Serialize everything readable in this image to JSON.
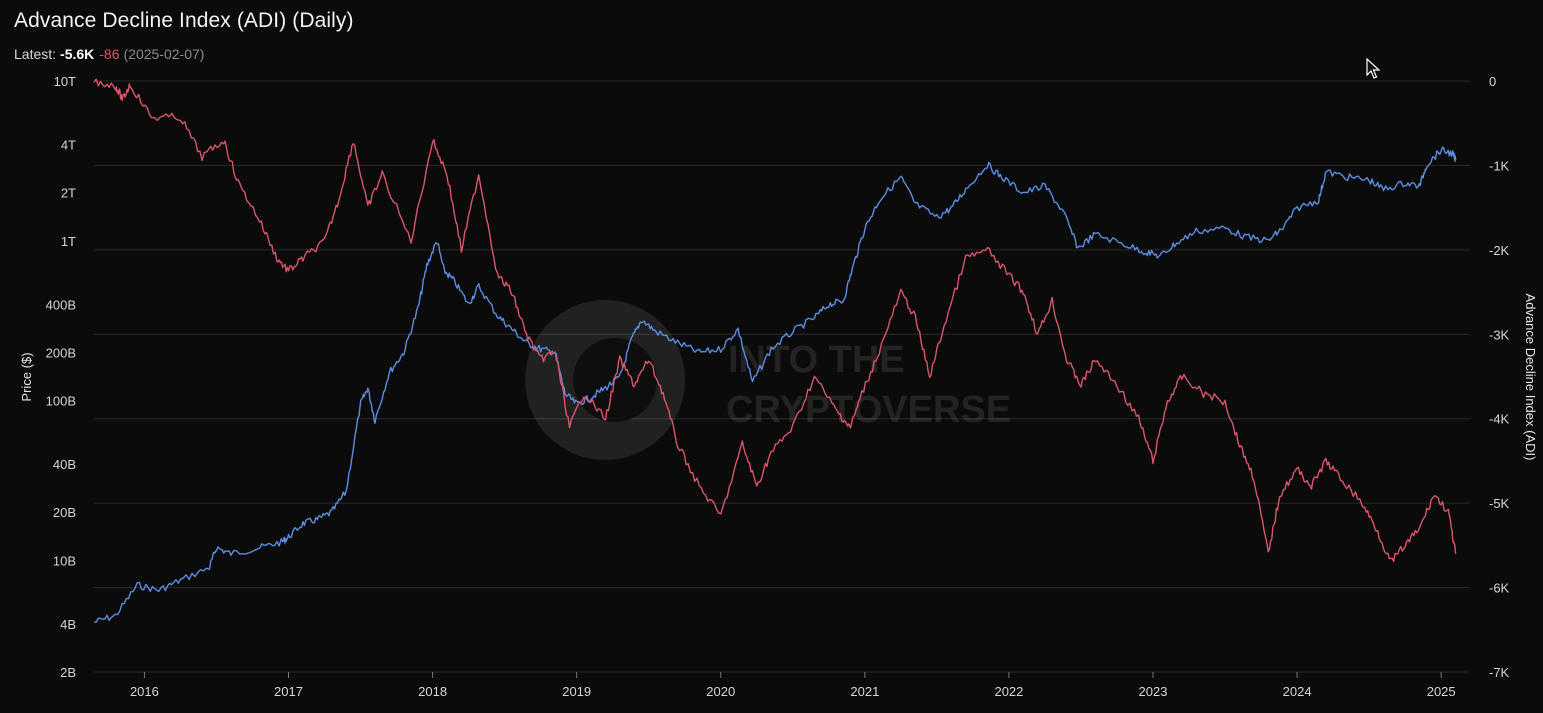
{
  "header": {
    "title": "Advance Decline Index (ADI) (Daily)",
    "latest_label": "Latest:",
    "latest_adi": "-5.6K",
    "latest_price": "-86",
    "latest_date": "(2025-02-07)"
  },
  "watermark": {
    "line1": "INTO THE",
    "line2": "CRYPTOVERSE"
  },
  "colors": {
    "background": "#0b0b0b",
    "price": "#5b8ee0",
    "adi": "#d9566a",
    "grid": "#2a2a2a"
  },
  "chart_data": {
    "type": "line",
    "title": "Advance Decline Index (ADI) (Daily)",
    "xlabel": "",
    "x_ticks": [
      "2016",
      "2017",
      "2018",
      "2019",
      "2020",
      "2021",
      "2022",
      "2023",
      "2024",
      "2025"
    ],
    "x_range": [
      2015.65,
      2025.2
    ],
    "y_left": {
      "label": "Price ($)",
      "scale": "log",
      "ticks": [
        {
          "label": "10T",
          "value": 10000000000000
        },
        {
          "label": "4T",
          "value": 4000000000000
        },
        {
          "label": "2T",
          "value": 2000000000000
        },
        {
          "label": "1T",
          "value": 1000000000000
        },
        {
          "label": "400B",
          "value": 400000000000
        },
        {
          "label": "200B",
          "value": 200000000000
        },
        {
          "label": "100B",
          "value": 100000000000
        },
        {
          "label": "40B",
          "value": 40000000000
        },
        {
          "label": "20B",
          "value": 20000000000
        },
        {
          "label": "10B",
          "value": 10000000000
        },
        {
          "label": "4B",
          "value": 4000000000
        },
        {
          "label": "2B",
          "value": 2000000000
        }
      ]
    },
    "y_right": {
      "label": "Advance Decline Index (ADI)",
      "ticks": [
        {
          "label": "0",
          "value": 0
        },
        {
          "label": "-1K",
          "value": -1000
        },
        {
          "label": "-2K",
          "value": -2000
        },
        {
          "label": "-3K",
          "value": -3000
        },
        {
          "label": "-4K",
          "value": -4000
        },
        {
          "label": "-5K",
          "value": -5000
        },
        {
          "label": "-6K",
          "value": -6000
        },
        {
          "label": "-7K",
          "value": -7000
        }
      ],
      "ylim": [
        -7000,
        0
      ]
    },
    "series": [
      {
        "axis": "left",
        "points": [
          [
            2015.65,
            4100000000.0
          ],
          [
            2015.8,
            4500000000.0
          ],
          [
            2015.95,
            7000000000.0
          ],
          [
            2016.1,
            6500000000.0
          ],
          [
            2016.25,
            7500000000.0
          ],
          [
            2016.45,
            9000000000.0
          ],
          [
            2016.5,
            12000000000.0
          ],
          [
            2016.6,
            11000000000.0
          ],
          [
            2016.8,
            12000000000.0
          ],
          [
            2016.95,
            13000000000.0
          ],
          [
            2017.0,
            14000000000.0
          ],
          [
            2017.1,
            17000000000.0
          ],
          [
            2017.2,
            18000000000.0
          ],
          [
            2017.3,
            20000000000.0
          ],
          [
            2017.4,
            27000000000.0
          ],
          [
            2017.5,
            95000000000.0
          ],
          [
            2017.55,
            120000000000.0
          ],
          [
            2017.6,
            75000000000.0
          ],
          [
            2017.7,
            150000000000.0
          ],
          [
            2017.8,
            200000000000.0
          ],
          [
            2017.9,
            380000000000.0
          ],
          [
            2017.96,
            700000000000.0
          ],
          [
            2018.03,
            1000000000000.0
          ],
          [
            2018.08,
            650000000000.0
          ],
          [
            2018.15,
            560000000000.0
          ],
          [
            2018.25,
            400000000000.0
          ],
          [
            2018.32,
            520000000000.0
          ],
          [
            2018.45,
            340000000000.0
          ],
          [
            2018.55,
            280000000000.0
          ],
          [
            2018.65,
            230000000000.0
          ],
          [
            2018.75,
            210000000000.0
          ],
          [
            2018.85,
            200000000000.0
          ],
          [
            2018.92,
            110000000000.0
          ],
          [
            2019.0,
            95000000000.0
          ],
          [
            2019.1,
            105000000000.0
          ],
          [
            2019.2,
            120000000000.0
          ],
          [
            2019.3,
            140000000000.0
          ],
          [
            2019.38,
            240000000000.0
          ],
          [
            2019.45,
            320000000000.0
          ],
          [
            2019.55,
            270000000000.0
          ],
          [
            2019.7,
            230000000000.0
          ],
          [
            2019.85,
            200000000000.0
          ],
          [
            2020.0,
            210000000000.0
          ],
          [
            2020.12,
            280000000000.0
          ],
          [
            2020.22,
            130000000000.0
          ],
          [
            2020.35,
            210000000000.0
          ],
          [
            2020.5,
            270000000000.0
          ],
          [
            2020.65,
            330000000000.0
          ],
          [
            2020.75,
            400000000000.0
          ],
          [
            2020.85,
            420000000000.0
          ],
          [
            2020.92,
            700000000000.0
          ],
          [
            2021.0,
            1200000000000.0
          ],
          [
            2021.1,
            1800000000000.0
          ],
          [
            2021.25,
            2500000000000.0
          ],
          [
            2021.35,
            1700000000000.0
          ],
          [
            2021.5,
            1400000000000.0
          ],
          [
            2021.6,
            1600000000000.0
          ],
          [
            2021.7,
            2100000000000.0
          ],
          [
            2021.85,
            3000000000000.0
          ],
          [
            2021.95,
            2500000000000.0
          ],
          [
            2022.1,
            2000000000000.0
          ],
          [
            2022.25,
            2200000000000.0
          ],
          [
            2022.38,
            1500000000000.0
          ],
          [
            2022.48,
            900000000000.0
          ],
          [
            2022.6,
            1100000000000.0
          ],
          [
            2022.8,
            950000000000.0
          ],
          [
            2022.95,
            850000000000.0
          ],
          [
            2023.05,
            800000000000.0
          ],
          [
            2023.15,
            950000000000.0
          ],
          [
            2023.3,
            1150000000000.0
          ],
          [
            2023.5,
            1200000000000.0
          ],
          [
            2023.65,
            1050000000000.0
          ],
          [
            2023.8,
            1000000000000.0
          ],
          [
            2023.9,
            1200000000000.0
          ],
          [
            2024.0,
            1600000000000.0
          ],
          [
            2024.15,
            1800000000000.0
          ],
          [
            2024.2,
            2700000000000.0
          ],
          [
            2024.35,
            2500000000000.0
          ],
          [
            2024.5,
            2400000000000.0
          ],
          [
            2024.6,
            2100000000000.0
          ],
          [
            2024.75,
            2300000000000.0
          ],
          [
            2024.85,
            2200000000000.0
          ],
          [
            2024.9,
            3000000000000.0
          ],
          [
            2025.0,
            3700000000000.0
          ],
          [
            2025.08,
            3500000000000.0
          ],
          [
            2025.1,
            3200000000000.0
          ]
        ]
      },
      {
        "axis": "right",
        "points": [
          [
            2015.65,
            0
          ],
          [
            2015.8,
            -60
          ],
          [
            2015.85,
            -220
          ],
          [
            2015.9,
            -40
          ],
          [
            2016.05,
            -430
          ],
          [
            2016.25,
            -430
          ],
          [
            2016.4,
            -900
          ],
          [
            2016.55,
            -700
          ],
          [
            2016.65,
            -1200
          ],
          [
            2016.8,
            -1650
          ],
          [
            2016.92,
            -2100
          ],
          [
            2017.0,
            -2250
          ],
          [
            2017.1,
            -2100
          ],
          [
            2017.25,
            -1900
          ],
          [
            2017.35,
            -1400
          ],
          [
            2017.45,
            -700
          ],
          [
            2017.55,
            -1500
          ],
          [
            2017.65,
            -1100
          ],
          [
            2017.85,
            -1900
          ],
          [
            2018.0,
            -700
          ],
          [
            2018.1,
            -1100
          ],
          [
            2018.2,
            -2000
          ],
          [
            2018.32,
            -1100
          ],
          [
            2018.45,
            -2300
          ],
          [
            2018.55,
            -2500
          ],
          [
            2018.65,
            -3000
          ],
          [
            2018.75,
            -3300
          ],
          [
            2018.85,
            -3200
          ],
          [
            2018.95,
            -4100
          ],
          [
            2019.05,
            -3700
          ],
          [
            2019.2,
            -4000
          ],
          [
            2019.3,
            -3300
          ],
          [
            2019.4,
            -3600
          ],
          [
            2019.5,
            -3300
          ],
          [
            2019.6,
            -3700
          ],
          [
            2019.7,
            -4300
          ],
          [
            2019.85,
            -4800
          ],
          [
            2020.0,
            -5150
          ],
          [
            2020.15,
            -4300
          ],
          [
            2020.25,
            -4800
          ],
          [
            2020.35,
            -4400
          ],
          [
            2020.5,
            -4100
          ],
          [
            2020.65,
            -3500
          ],
          [
            2020.8,
            -3900
          ],
          [
            2020.9,
            -4100
          ],
          [
            2020.98,
            -3700
          ],
          [
            2021.1,
            -3200
          ],
          [
            2021.25,
            -2500
          ],
          [
            2021.35,
            -2800
          ],
          [
            2021.45,
            -3500
          ],
          [
            2021.55,
            -2900
          ],
          [
            2021.7,
            -2100
          ],
          [
            2021.85,
            -2000
          ],
          [
            2022.0,
            -2300
          ],
          [
            2022.1,
            -2500
          ],
          [
            2022.2,
            -3000
          ],
          [
            2022.3,
            -2600
          ],
          [
            2022.4,
            -3300
          ],
          [
            2022.5,
            -3600
          ],
          [
            2022.6,
            -3300
          ],
          [
            2022.75,
            -3600
          ],
          [
            2022.9,
            -4000
          ],
          [
            2023.0,
            -4500
          ],
          [
            2023.1,
            -3800
          ],
          [
            2023.2,
            -3500
          ],
          [
            2023.35,
            -3700
          ],
          [
            2023.5,
            -3800
          ],
          [
            2023.6,
            -4300
          ],
          [
            2023.7,
            -4700
          ],
          [
            2023.8,
            -5600
          ],
          [
            2023.88,
            -4900
          ],
          [
            2024.0,
            -4600
          ],
          [
            2024.1,
            -4800
          ],
          [
            2024.2,
            -4500
          ],
          [
            2024.3,
            -4700
          ],
          [
            2024.45,
            -5000
          ],
          [
            2024.55,
            -5300
          ],
          [
            2024.65,
            -5700
          ],
          [
            2024.75,
            -5500
          ],
          [
            2024.85,
            -5300
          ],
          [
            2024.95,
            -4900
          ],
          [
            2025.05,
            -5100
          ],
          [
            2025.1,
            -5600
          ]
        ]
      }
    ]
  }
}
